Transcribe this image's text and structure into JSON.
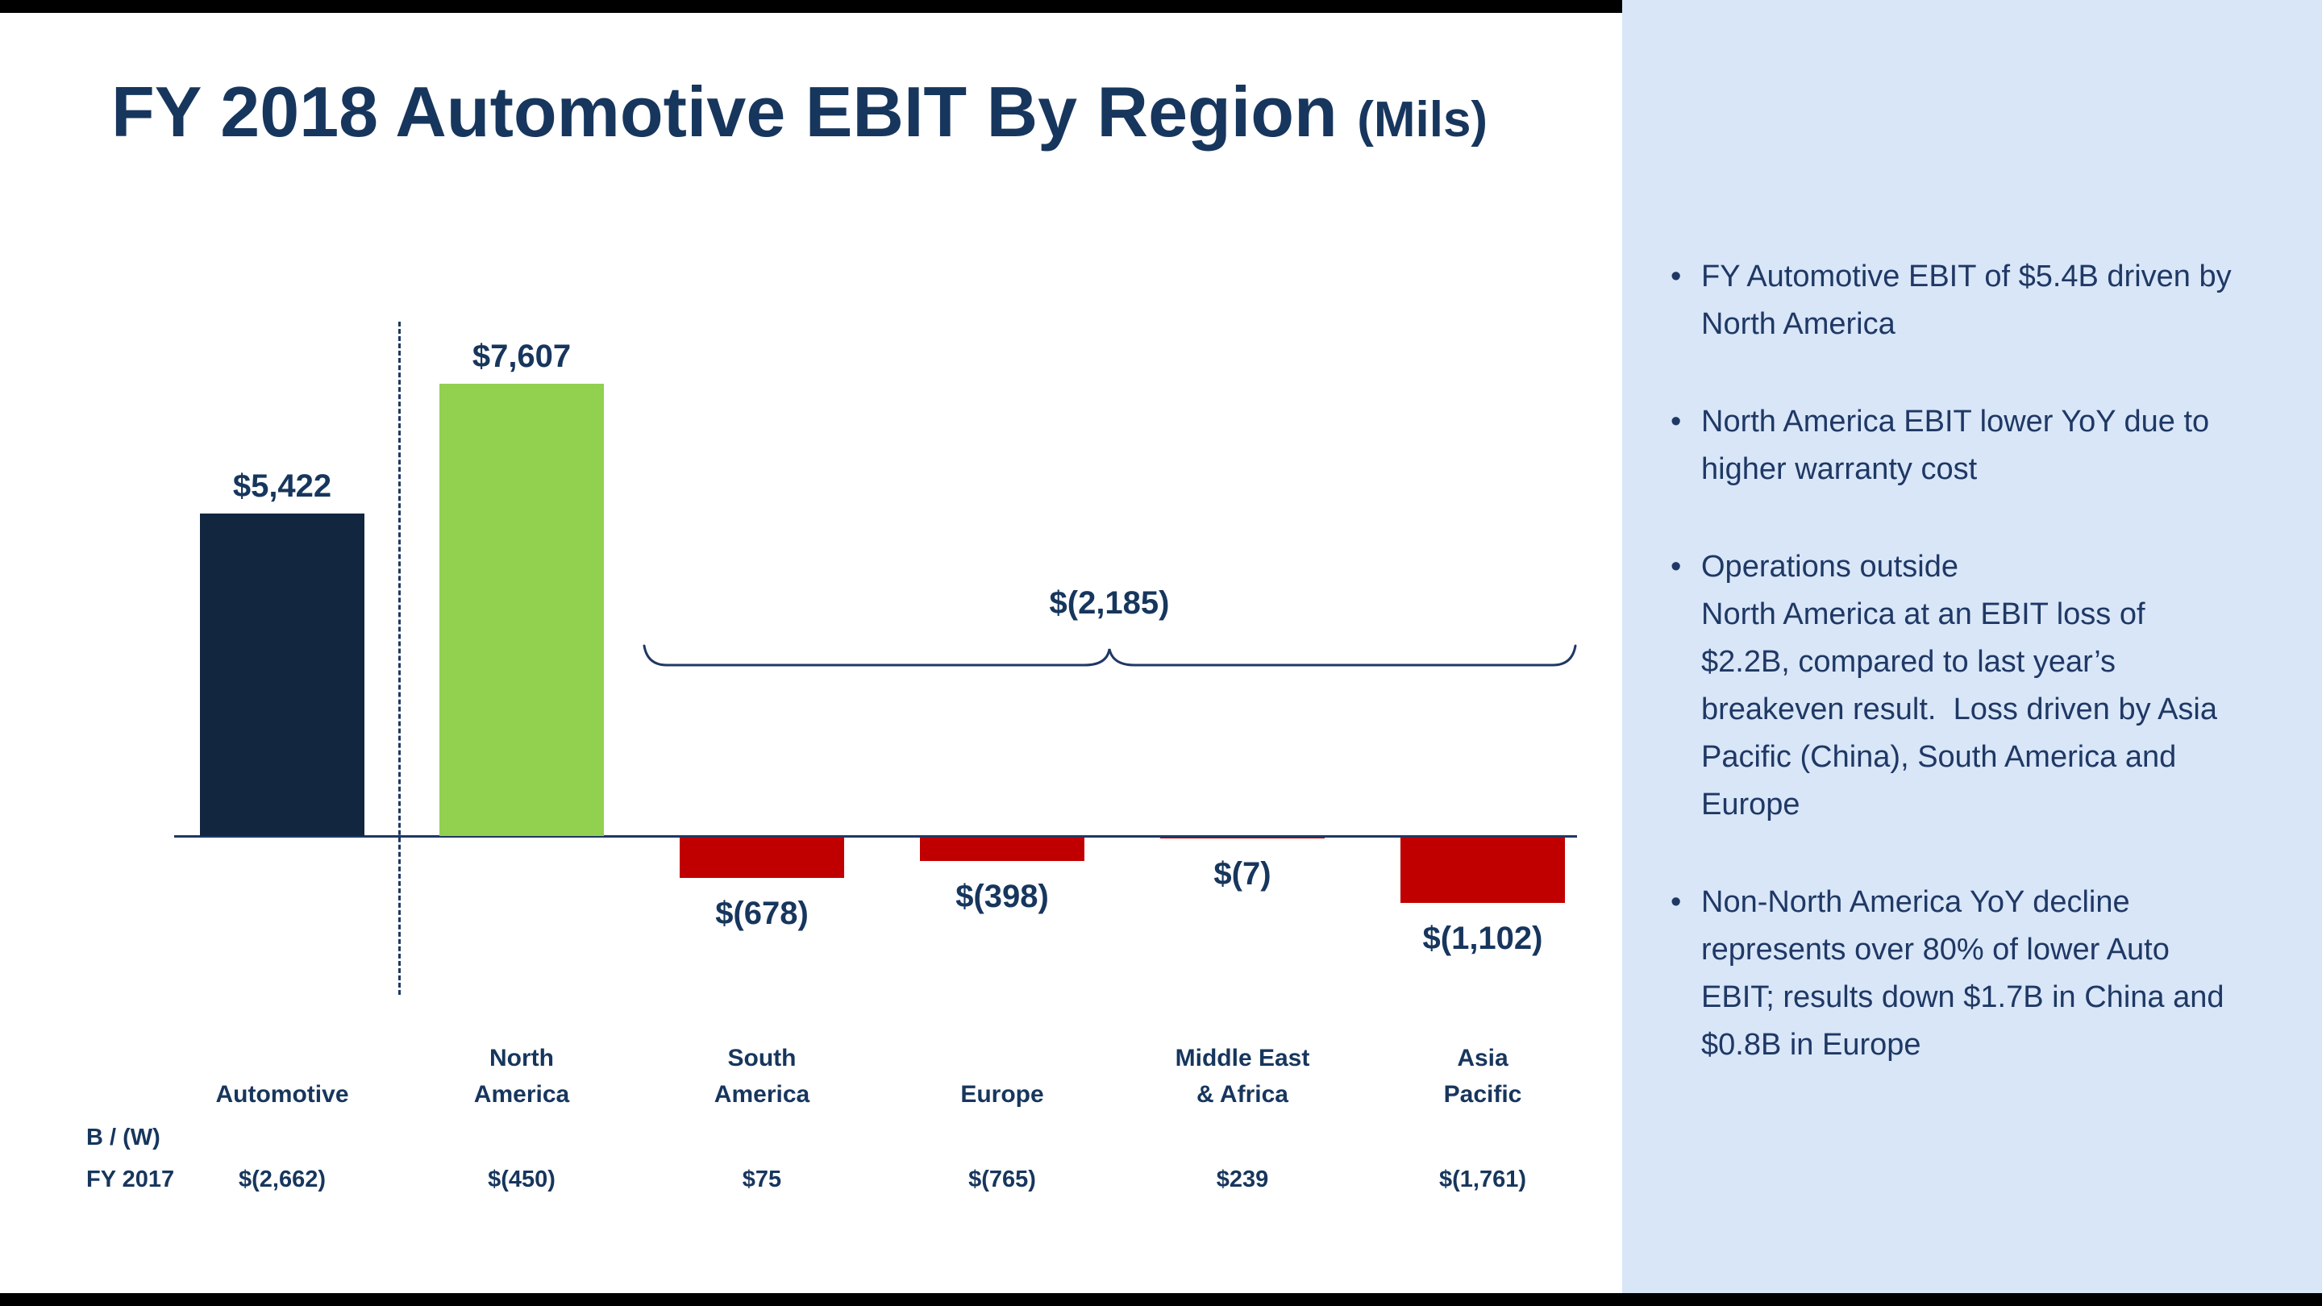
{
  "colors": {
    "navy_text": "#17365D",
    "bar_automotive": "#12263F",
    "bar_green": "#92D050",
    "bar_red": "#C00000",
    "sidebar_bg": "#D8E6F8",
    "frame_black": "#000000"
  },
  "title": {
    "main": "FY 2018 Automotive EBIT By Region",
    "suffix": "(Mils)"
  },
  "chart_data": {
    "type": "bar",
    "title": "FY 2018 Automotive EBIT By Region (Mils)",
    "categories": [
      "Automotive",
      "North America",
      "South America",
      "Europe",
      "Middle East & Africa",
      "Asia Pacific"
    ],
    "category_label_lines": [
      [
        "Automotive"
      ],
      [
        "North",
        "America"
      ],
      [
        "South",
        "America"
      ],
      [
        "Europe"
      ],
      [
        "Middle East",
        "& Africa"
      ],
      [
        "Asia",
        "Pacific"
      ]
    ],
    "values": [
      5422,
      7607,
      -678,
      -398,
      -7,
      -1102
    ],
    "value_labels": [
      "$5,422",
      "$7,607",
      "$(678)",
      "$(398)",
      "$(7)",
      "$(1,102)"
    ],
    "bar_colors": [
      "#12263F",
      "#92D050",
      "#C00000",
      "#C00000",
      "#C00000",
      "#C00000"
    ],
    "ylim": [
      -1300,
      7700
    ],
    "grid": false,
    "legend": false,
    "brace_annotation": {
      "label": "$(2,185)",
      "from_category": "South America",
      "to_category": "Asia Pacific"
    },
    "footer": {
      "row_header_line1": "B / (W)",
      "row_header_line2": "FY 2017",
      "fy2017_values": [
        "$(2,662)",
        "$(450)",
        "$75",
        "$(765)",
        "$239",
        "$(1,761)"
      ]
    }
  },
  "sidebar": {
    "bullets": [
      "FY Automotive EBIT of $5.4B driven by North America",
      "North America EBIT lower YoY due to higher warranty cost",
      "Operations outside\nNorth America at an EBIT loss of $2.2B, compared to last year’s breakeven result.  Loss driven by Asia Pacific (China), South America and Europe",
      "Non-North America YoY decline represents over 80% of lower Auto EBIT; results down $1.7B in China and $0.8B in Europe"
    ]
  }
}
